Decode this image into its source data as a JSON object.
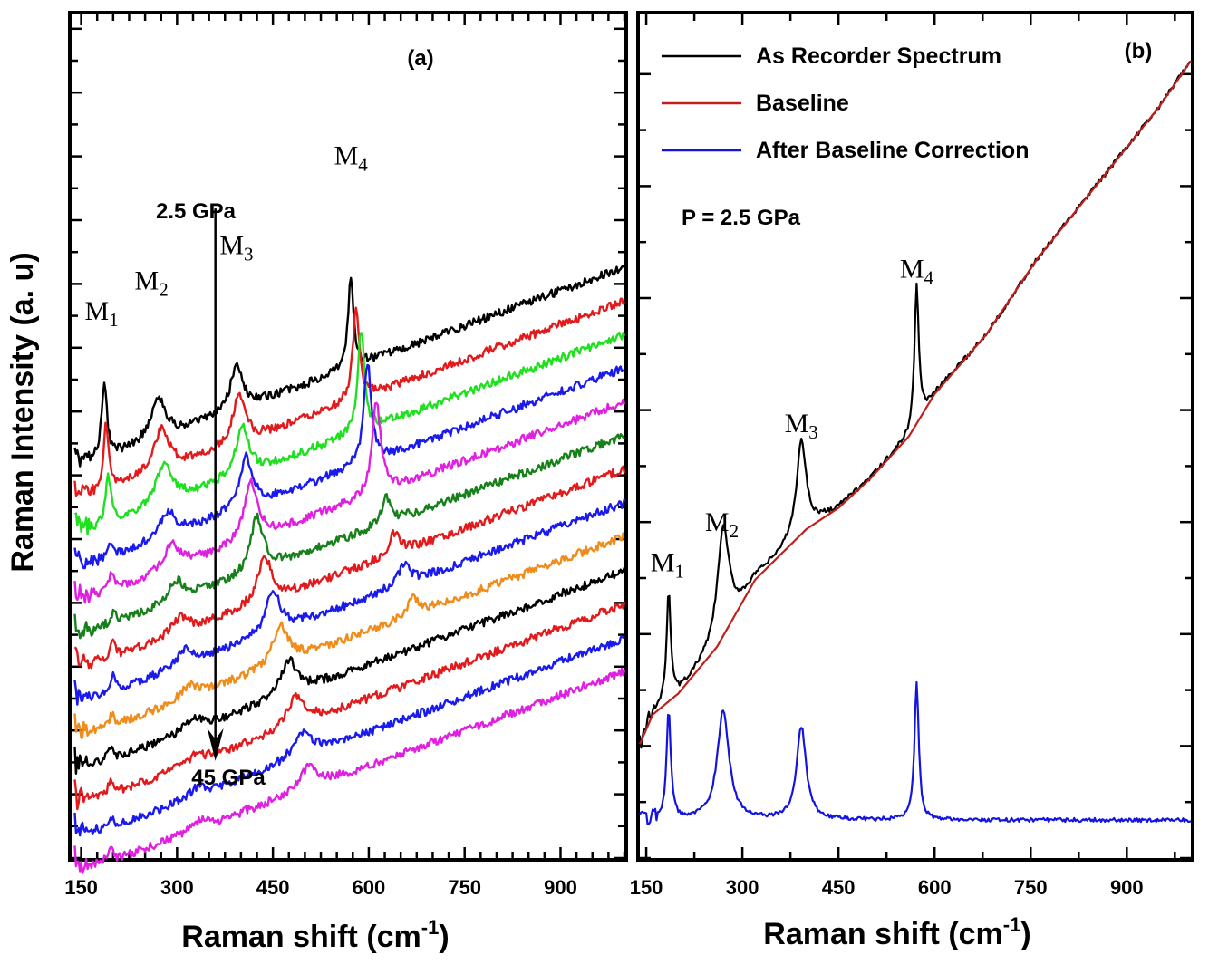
{
  "chart_data": [
    {
      "type": "line",
      "panel_label": "(a)",
      "xlabel": "Raman shift (cm",
      "xlabel_sup": "-1",
      "xlabel_close": ")",
      "ylabel": "Raman Intensity (a. u)",
      "xlim": [
        135,
        1000
      ],
      "ylim": [
        0,
        100
      ],
      "x_ticks": [
        150,
        300,
        450,
        600,
        750,
        900
      ],
      "annotations": {
        "pressure_start": "2.5 GPa",
        "pressure_end": "45 GPa"
      },
      "peak_labels": [
        {
          "main": "M",
          "sub": "1",
          "x": 182,
          "y": 63.8
        },
        {
          "main": "M",
          "sub": "2",
          "x": 260,
          "y": 67.4
        },
        {
          "main": "M",
          "sub": "3",
          "x": 393,
          "y": 71.6
        },
        {
          "main": "M",
          "sub": "4",
          "x": 572,
          "y": 82.2
        }
      ],
      "pressure_arrow": {
        "x": 360,
        "y_start": 77.0,
        "y_end": 11.5
      },
      "series": [
        {
          "color": "#000000",
          "offset": 46.0,
          "peaks": [
            [
              186,
              9.0,
              5
            ],
            [
              270,
              5.0,
              14
            ],
            [
              393,
              5.5,
              11
            ],
            [
              572,
              11.0,
              5
            ]
          ]
        },
        {
          "color": "#e31a1c",
          "offset": 42.0,
          "peaks": [
            [
              189,
              8.0,
              5
            ],
            [
              275,
              5.0,
              15
            ],
            [
              397,
              6.0,
              11
            ],
            [
              580,
              11.0,
              6
            ]
          ]
        },
        {
          "color": "#1fe01f",
          "offset": 38.0,
          "peaks": [
            [
              192,
              6.0,
              5
            ],
            [
              280,
              5.0,
              15
            ],
            [
              402,
              6.0,
              12
            ],
            [
              588,
              12.0,
              6
            ]
          ]
        },
        {
          "color": "#1a1aee",
          "offset": 34.0,
          "peaks": [
            [
              196,
              1.5,
              5
            ],
            [
              285,
              3.0,
              15
            ],
            [
              408,
              6.0,
              12
            ],
            [
              598,
              12.0,
              7
            ]
          ]
        },
        {
          "color": "#e020e0",
          "offset": 30.0,
          "peaks": [
            [
              198,
              2.0,
              5
            ],
            [
              292,
              3.0,
              15
            ],
            [
              415,
              7.0,
              12
            ],
            [
              612,
              11.0,
              8
            ]
          ]
        },
        {
          "color": "#17801a",
          "offset": 26.0,
          "peaks": [
            [
              200,
              1.5,
              5
            ],
            [
              298,
              2.5,
              15
            ],
            [
              425,
              6.5,
              12
            ],
            [
              627,
              3.0,
              9
            ]
          ]
        },
        {
          "color": "#e31a1c",
          "offset": 22.0,
          "peaks": [
            [
              200,
              2.0,
              5
            ],
            [
              305,
              2.0,
              15
            ],
            [
              437,
              5.5,
              13
            ],
            [
              640,
              2.5,
              10
            ]
          ]
        },
        {
          "color": "#1a1aee",
          "offset": 18.0,
          "peaks": [
            [
              200,
              2.0,
              5
            ],
            [
              312,
              2.0,
              15
            ],
            [
              450,
              5.0,
              14
            ],
            [
              655,
              2.5,
              11
            ]
          ]
        },
        {
          "color": "#f08c1a",
          "offset": 14.0,
          "peaks": [
            [
              198,
              1.5,
              5
            ],
            [
              320,
              1.5,
              15
            ],
            [
              462,
              4.5,
              15
            ],
            [
              670,
              2.0,
              12
            ]
          ]
        },
        {
          "color": "#000000",
          "offset": 10.0,
          "peaks": [
            [
              196,
              1.5,
              5
            ],
            [
              325,
              1.5,
              15
            ],
            [
              475,
              4.0,
              16
            ]
          ]
        },
        {
          "color": "#e31a1c",
          "offset": 6.0,
          "peaks": [
            [
              196,
              1.5,
              5
            ],
            [
              330,
              1.0,
              15
            ],
            [
              487,
              3.5,
              17
            ]
          ]
        },
        {
          "color": "#1a1aee",
          "offset": 2.0,
          "peaks": [
            [
              196,
              1.5,
              5
            ],
            [
              332,
              1.0,
              15
            ],
            [
              497,
              3.0,
              18
            ]
          ]
        },
        {
          "color": "#e020e0",
          "offset": -2.0,
          "peaks": [
            [
              196,
              1.5,
              5
            ],
            [
              335,
              1.0,
              15
            ],
            [
              505,
              2.5,
              18
            ]
          ]
        }
      ]
    },
    {
      "type": "line",
      "panel_label": "(b)",
      "xlabel": "Raman shift (cm",
      "xlabel_sup": "-1",
      "xlabel_close": ")",
      "xlim": [
        140,
        1000
      ],
      "ylim": [
        0,
        100
      ],
      "x_ticks": [
        150,
        300,
        450,
        600,
        750,
        900
      ],
      "annotation": "P = 2.5 GPa",
      "legend": {
        "position": "top-left",
        "entries": [
          {
            "label": "As Recorder Spectrum",
            "color": "#000000"
          },
          {
            "label": "Baseline",
            "color": "#c0201c"
          },
          {
            "label": "After Baseline Correction",
            "color": "#1414e0"
          }
        ]
      },
      "peak_labels": [
        {
          "main": "M",
          "sub": "1",
          "x": 183,
          "y": 34.0
        },
        {
          "main": "M",
          "sub": "2",
          "x": 268,
          "y": 38.8
        },
        {
          "main": "M",
          "sub": "3",
          "x": 392,
          "y": 50.5
        },
        {
          "main": "M",
          "sub": "4",
          "x": 572,
          "y": 68.8
        }
      ],
      "peaks": [
        [
          185,
          13.0,
          4
        ],
        [
          270,
          13.0,
          11
        ],
        [
          392,
          11.0,
          9
        ],
        [
          572,
          16.5,
          4
        ]
      ],
      "baseline_points": [
        [
          140,
          13.5
        ],
        [
          160,
          17.0
        ],
        [
          200,
          19.5
        ],
        [
          260,
          25.0
        ],
        [
          320,
          33.0
        ],
        [
          400,
          39.0
        ],
        [
          450,
          41.5
        ],
        [
          500,
          45.0
        ],
        [
          560,
          50.0
        ],
        [
          600,
          55.0
        ],
        [
          680,
          62.0
        ],
        [
          760,
          71.0
        ],
        [
          850,
          79.5
        ],
        [
          950,
          89.0
        ],
        [
          1000,
          94.5
        ]
      ],
      "corrected_offset": 4.5
    }
  ]
}
